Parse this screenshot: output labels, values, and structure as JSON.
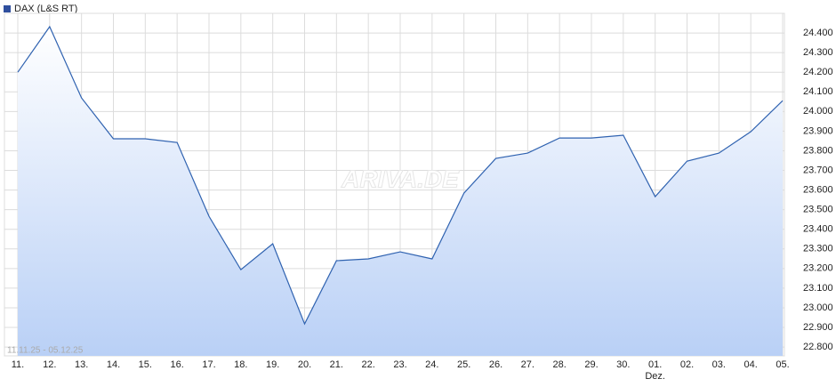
{
  "chart_data": {
    "type": "area",
    "legend": "DAX (L&S RT)",
    "watermark": "ARIVA.DE",
    "date_range": "11.11.25 - 05.12.25",
    "categories": [
      "11.",
      "12.",
      "13.",
      "14.",
      "15.",
      "16.",
      "17.",
      "18.",
      "19.",
      "20.",
      "21.",
      "22.",
      "23.",
      "24.",
      "25.",
      "26.",
      "27.",
      "28.",
      "29.",
      "30.",
      "01.",
      "02.",
      "03.",
      "04.",
      "05."
    ],
    "x_sublabels": [
      null,
      null,
      null,
      null,
      null,
      null,
      null,
      null,
      null,
      null,
      null,
      null,
      null,
      null,
      null,
      null,
      null,
      null,
      null,
      null,
      "Dez.",
      null,
      null,
      null,
      null
    ],
    "series": [
      {
        "name": "DAX (L&S RT)",
        "color": "#2f62b0",
        "values": [
          24200,
          24432,
          24069,
          23861,
          23861,
          23842,
          23466,
          23194,
          23326,
          22918,
          23240,
          23249,
          23285,
          23249,
          23584,
          23761,
          23788,
          23865,
          23865,
          23879,
          23566,
          23747,
          23788,
          23897,
          24055
        ]
      }
    ],
    "ylim": [
      22755,
      24500
    ],
    "yticks": [
      {
        "value": 22800,
        "label": "22.800"
      },
      {
        "value": 22900,
        "label": "22.900"
      },
      {
        "value": 23000,
        "label": "23.000"
      },
      {
        "value": 23100,
        "label": "23.100"
      },
      {
        "value": 23200,
        "label": "23.200"
      },
      {
        "value": 23300,
        "label": "23.300"
      },
      {
        "value": 23400,
        "label": "23.400"
      },
      {
        "value": 23500,
        "label": "23.500"
      },
      {
        "value": 23600,
        "label": "23.600"
      },
      {
        "value": 23700,
        "label": "23.700"
      },
      {
        "value": 23800,
        "label": "23.800"
      },
      {
        "value": 23900,
        "label": "23.900"
      },
      {
        "value": 24000,
        "label": "24.000"
      },
      {
        "value": 24100,
        "label": "24.100"
      },
      {
        "value": 24200,
        "label": "24.200"
      },
      {
        "value": 24300,
        "label": "24.300"
      },
      {
        "value": 24400,
        "label": "24.400"
      }
    ],
    "grid": true
  }
}
